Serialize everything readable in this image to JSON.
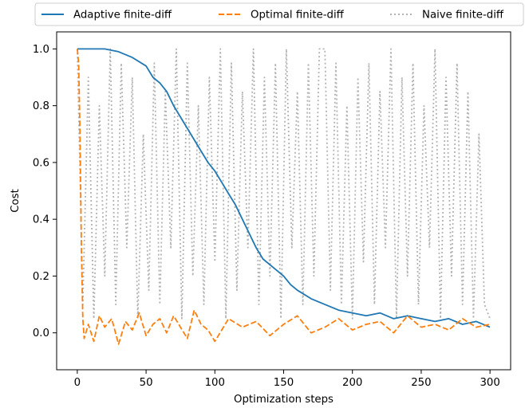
{
  "chart_data": {
    "type": "line",
    "title": "",
    "xlabel": "Optimization steps",
    "ylabel": "Cost",
    "xlim": [
      -15,
      315
    ],
    "ylim": [
      -0.13,
      1.06
    ],
    "xticks": [
      0,
      50,
      100,
      150,
      200,
      250,
      300
    ],
    "yticks": [
      0.0,
      0.2,
      0.4,
      0.6,
      0.8,
      1.0
    ],
    "xtick_labels": [
      "0",
      "50",
      "100",
      "150",
      "200",
      "250",
      "300"
    ],
    "ytick_labels": [
      "0.0",
      "0.2",
      "0.4",
      "0.6",
      "0.8",
      "1.0"
    ],
    "grid": false,
    "legend_position": "top, above plot",
    "series": [
      {
        "name": "Adaptive finite-diff",
        "color": "#1f77b4",
        "style": "solid",
        "x": [
          0,
          10,
          20,
          30,
          40,
          50,
          55,
          60,
          65,
          70,
          75,
          80,
          85,
          90,
          95,
          100,
          105,
          110,
          115,
          120,
          125,
          130,
          135,
          140,
          145,
          150,
          155,
          160,
          170,
          180,
          190,
          200,
          210,
          220,
          230,
          240,
          250,
          260,
          270,
          280,
          290,
          300
        ],
        "y": [
          1.0,
          1.0,
          1.0,
          0.99,
          0.97,
          0.94,
          0.9,
          0.88,
          0.85,
          0.8,
          0.76,
          0.72,
          0.68,
          0.64,
          0.6,
          0.57,
          0.53,
          0.49,
          0.45,
          0.4,
          0.35,
          0.3,
          0.26,
          0.24,
          0.22,
          0.2,
          0.17,
          0.15,
          0.12,
          0.1,
          0.08,
          0.07,
          0.06,
          0.07,
          0.05,
          0.06,
          0.05,
          0.04,
          0.05,
          0.03,
          0.04,
          0.02
        ]
      },
      {
        "name": "Optimal finite-diff",
        "color": "#ff7f0e",
        "style": "dashed",
        "x": [
          0,
          1,
          2,
          3,
          4,
          5,
          8,
          12,
          16,
          20,
          25,
          30,
          35,
          40,
          45,
          50,
          55,
          60,
          65,
          70,
          75,
          80,
          85,
          90,
          95,
          100,
          110,
          120,
          130,
          140,
          150,
          160,
          170,
          180,
          190,
          200,
          210,
          220,
          230,
          240,
          250,
          260,
          270,
          280,
          290,
          300
        ],
        "y": [
          1.0,
          0.95,
          0.7,
          0.3,
          0.05,
          -0.02,
          0.03,
          -0.03,
          0.06,
          0.02,
          0.05,
          -0.04,
          0.04,
          0.01,
          0.07,
          -0.01,
          0.03,
          0.05,
          0.0,
          0.06,
          0.02,
          -0.02,
          0.08,
          0.03,
          0.01,
          -0.03,
          0.05,
          0.02,
          0.04,
          -0.01,
          0.03,
          0.06,
          0.0,
          0.02,
          0.05,
          0.01,
          0.03,
          0.04,
          0.0,
          0.06,
          0.02,
          0.03,
          0.01,
          0.05,
          0.02,
          0.03
        ]
      },
      {
        "name": "Naive finite-diff",
        "color": "#b3b3b3",
        "style": "dotted",
        "x": [
          0,
          4,
          8,
          12,
          16,
          20,
          24,
          28,
          32,
          36,
          40,
          44,
          48,
          52,
          56,
          60,
          64,
          68,
          72,
          76,
          80,
          84,
          88,
          92,
          96,
          100,
          104,
          108,
          112,
          116,
          120,
          124,
          128,
          132,
          136,
          140,
          144,
          148,
          152,
          156,
          160,
          164,
          168,
          172,
          176,
          180,
          184,
          188,
          192,
          196,
          200,
          204,
          208,
          212,
          216,
          220,
          224,
          228,
          232,
          236,
          240,
          244,
          248,
          252,
          256,
          260,
          264,
          268,
          272,
          276,
          280,
          284,
          288,
          292,
          296,
          300
        ],
        "y": [
          1.0,
          0.1,
          0.9,
          0.05,
          0.8,
          0.2,
          1.0,
          0.1,
          0.95,
          0.3,
          0.9,
          0.05,
          0.7,
          0.15,
          0.95,
          0.1,
          0.85,
          0.3,
          1.0,
          0.05,
          0.95,
          0.2,
          0.8,
          0.1,
          0.9,
          0.25,
          1.0,
          0.05,
          0.95,
          0.15,
          0.85,
          0.3,
          1.0,
          0.1,
          0.9,
          0.2,
          0.95,
          0.05,
          1.0,
          0.3,
          0.85,
          0.1,
          0.95,
          0.2,
          1.0,
          1.0,
          0.15,
          0.95,
          0.1,
          0.8,
          0.05,
          0.9,
          0.25,
          0.95,
          0.1,
          0.85,
          0.3,
          1.0,
          0.05,
          0.9,
          0.2,
          0.95,
          0.1,
          0.8,
          0.3,
          1.0,
          0.05,
          0.9,
          0.2,
          0.95,
          0.1,
          0.85,
          0.05,
          0.7,
          0.1,
          0.05
        ]
      }
    ]
  }
}
